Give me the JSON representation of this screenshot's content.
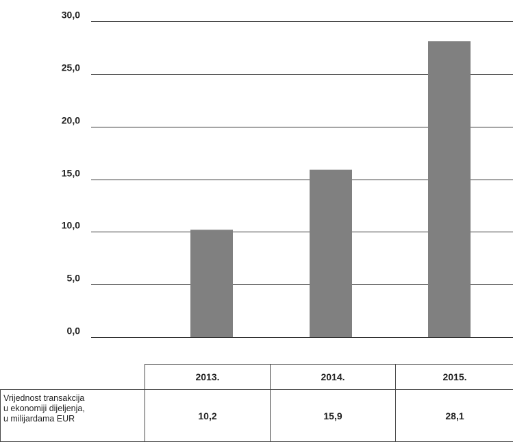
{
  "chart_data": {
    "type": "bar",
    "categories": [
      "2013.",
      "2014.",
      "2015."
    ],
    "values": [
      10.2,
      15.9,
      28.1
    ],
    "value_labels": [
      "10,2",
      "15,9",
      "28,1"
    ],
    "yticks": [
      "0,0",
      "5,0",
      "10,0",
      "15,0",
      "20,0",
      "25,0",
      "30,0"
    ],
    "ylim": [
      0,
      30
    ],
    "grid": true,
    "bar_color": "#808080",
    "row_label": "Vrijednost transakcija\nu ekonomiji dijeljenja,\nu milijardama EUR"
  }
}
